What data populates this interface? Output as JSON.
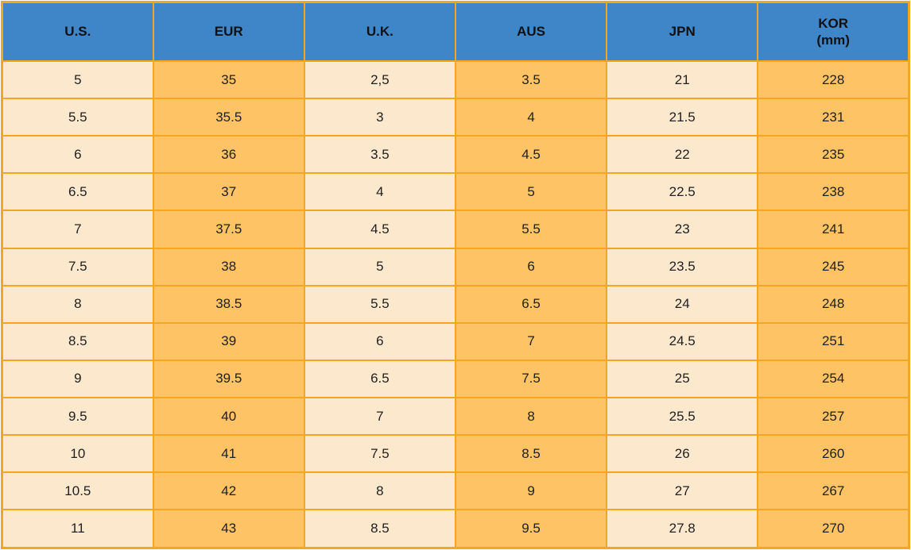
{
  "chart_data": {
    "type": "table",
    "columns": [
      {
        "label": "U.S."
      },
      {
        "label": "EUR"
      },
      {
        "label": "U.K."
      },
      {
        "label": "AUS"
      },
      {
        "label": "JPN"
      },
      {
        "label": "KOR",
        "sublabel": "(mm)"
      }
    ],
    "rows": [
      [
        "5",
        "35",
        "2,5",
        "3.5",
        "21",
        "228"
      ],
      [
        "5.5",
        "35.5",
        "3",
        "4",
        "21.5",
        "231"
      ],
      [
        "6",
        "36",
        "3.5",
        "4.5",
        "22",
        "235"
      ],
      [
        "6.5",
        "37",
        "4",
        "5",
        "22.5",
        "238"
      ],
      [
        "7",
        "37.5",
        "4.5",
        "5.5",
        "23",
        "241"
      ],
      [
        "7.5",
        "38",
        "5",
        "6",
        "23.5",
        "245"
      ],
      [
        "8",
        "38.5",
        "5.5",
        "6.5",
        "24",
        "248"
      ],
      [
        "8.5",
        "39",
        "6",
        "7",
        "24.5",
        "251"
      ],
      [
        "9",
        "39.5",
        "6.5",
        "7.5",
        "25",
        "254"
      ],
      [
        "9.5",
        "40",
        "7",
        "8",
        "25.5",
        "257"
      ],
      [
        "10",
        "41",
        "7.5",
        "8.5",
        "26",
        "260"
      ],
      [
        "10.5",
        "42",
        "8",
        "9",
        "27",
        "267"
      ],
      [
        "11",
        "43",
        "8.5",
        "9.5",
        "27.8",
        "270"
      ]
    ],
    "layout": {
      "grid": "on",
      "column_fill_pattern": [
        "light",
        "orange",
        "light",
        "orange",
        "light",
        "orange"
      ]
    }
  },
  "colors": {
    "header_bg": "#3e86c8",
    "header_text": "#111111",
    "cell_text": "#1f1f1f",
    "border": "#f4a621",
    "column_light": "#fce8cd",
    "column_orange": "#fec364",
    "page_bg": "#ffffff"
  }
}
